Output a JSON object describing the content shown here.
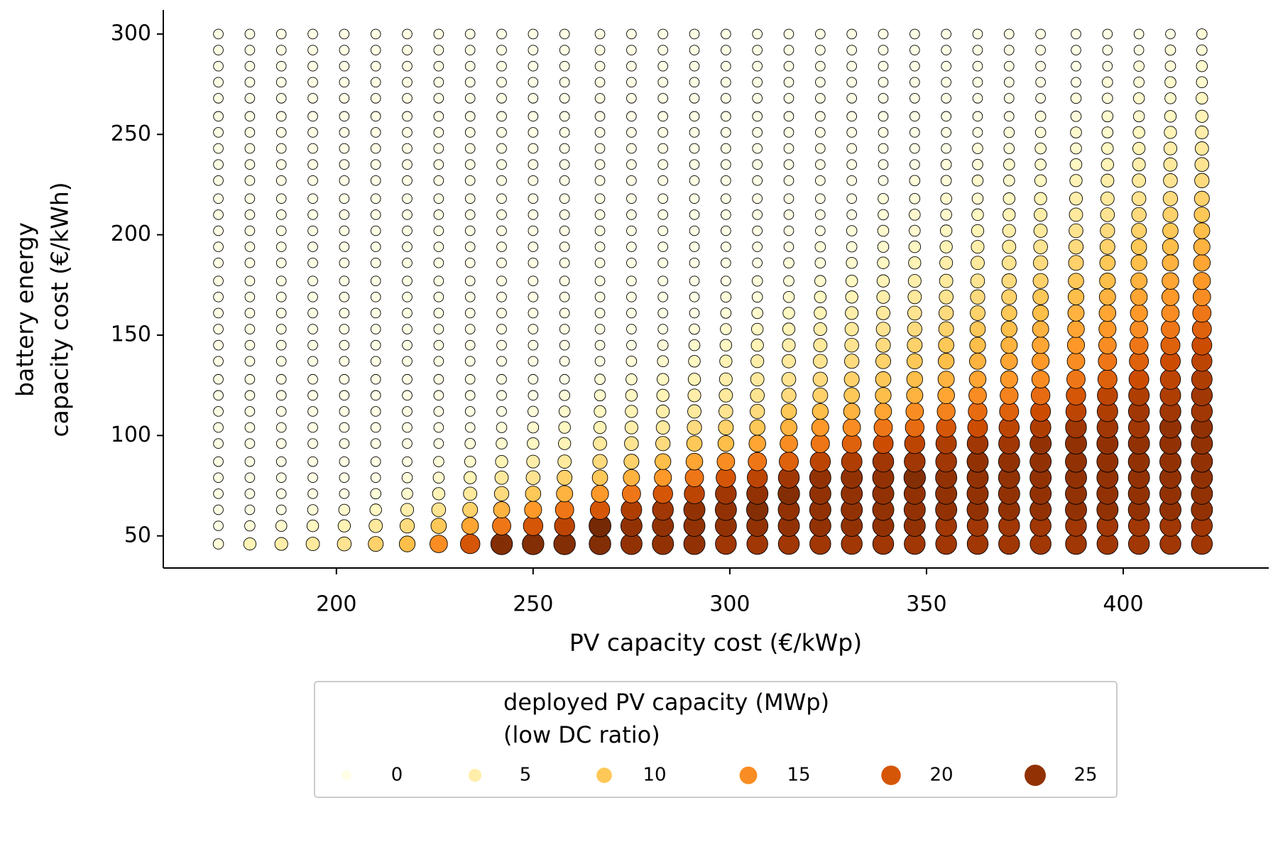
{
  "chart_data": {
    "type": "bubble",
    "x_label": "PV capacity cost (€/kWp)",
    "y_label": [
      "battery energy",
      "capacity cost (€/kWh)"
    ],
    "xlim": [
      156,
      437
    ],
    "ylim": [
      34,
      312
    ],
    "xticks": [
      200,
      250,
      300,
      350,
      400
    ],
    "yticks": [
      50,
      100,
      150,
      200,
      250,
      300
    ],
    "x": [
      170,
      178,
      186,
      194,
      202,
      210,
      218,
      226,
      234,
      242,
      250,
      258,
      267,
      275,
      283,
      291,
      299,
      307,
      315,
      323,
      331,
      339,
      347,
      355,
      363,
      371,
      379,
      388,
      396,
      404,
      412,
      420
    ],
    "y": [
      46,
      55,
      63,
      71,
      79,
      87,
      96,
      104,
      112,
      120,
      128,
      137,
      145,
      153,
      161,
      169,
      177,
      186,
      194,
      202,
      210,
      218,
      227,
      235,
      243,
      251,
      259,
      268,
      276,
      284,
      292,
      300
    ],
    "values": [
      [
        1,
        0,
        0,
        0,
        0,
        0,
        0,
        0,
        0,
        0,
        0,
        0,
        0,
        0,
        0,
        0,
        0,
        0,
        0,
        0,
        0,
        0,
        0,
        0,
        0,
        0,
        0,
        0,
        0,
        0,
        0,
        0
      ],
      [
        4,
        1,
        0,
        0,
        0,
        0,
        0,
        0,
        0,
        0,
        0,
        0,
        0,
        0,
        0,
        0,
        0,
        0,
        0,
        0,
        0,
        0,
        0,
        0,
        0,
        0,
        0,
        0,
        0,
        0,
        0,
        0
      ],
      [
        5,
        2,
        0,
        0,
        0,
        0,
        0,
        0,
        0,
        0,
        0,
        0,
        0,
        0,
        0,
        0,
        0,
        0,
        0,
        0,
        0,
        0,
        0,
        0,
        0,
        0,
        0,
        0,
        0,
        0,
        0,
        0
      ],
      [
        6,
        3,
        1,
        0,
        0,
        0,
        0,
        0,
        0,
        0,
        0,
        0,
        0,
        0,
        0,
        0,
        0,
        0,
        0,
        0,
        0,
        0,
        0,
        0,
        0,
        0,
        0,
        0,
        0,
        0,
        0,
        0
      ],
      [
        7,
        4,
        2,
        0,
        0,
        0,
        0,
        0,
        0,
        0,
        0,
        0,
        0,
        0,
        0,
        0,
        0,
        0,
        0,
        0,
        0,
        0,
        0,
        0,
        0,
        0,
        0,
        0,
        0,
        0,
        0,
        0
      ],
      [
        9,
        6,
        3,
        1,
        0,
        0,
        0,
        0,
        0,
        0,
        0,
        0,
        0,
        0,
        0,
        0,
        0,
        0,
        0,
        0,
        0,
        0,
        0,
        0,
        0,
        0,
        0,
        0,
        0,
        0,
        0,
        0
      ],
      [
        11,
        8,
        5,
        2,
        1,
        0,
        0,
        0,
        0,
        0,
        0,
        0,
        0,
        0,
        0,
        0,
        0,
        0,
        0,
        0,
        0,
        0,
        0,
        0,
        0,
        0,
        0,
        0,
        0,
        0,
        0,
        0
      ],
      [
        15,
        10,
        7,
        4,
        2,
        1,
        0,
        0,
        0,
        0,
        0,
        0,
        0,
        0,
        0,
        0,
        0,
        0,
        0,
        0,
        0,
        0,
        0,
        0,
        0,
        0,
        0,
        0,
        0,
        0,
        0,
        0
      ],
      [
        20,
        13,
        9,
        6,
        4,
        2,
        1,
        0,
        0,
        0,
        0,
        0,
        0,
        0,
        0,
        0,
        0,
        0,
        0,
        0,
        0,
        0,
        0,
        0,
        0,
        0,
        0,
        0,
        0,
        0,
        0,
        0
      ],
      [
        26,
        17,
        12,
        8,
        6,
        4,
        2,
        1,
        0,
        0,
        0,
        0,
        0,
        0,
        0,
        0,
        0,
        0,
        0,
        0,
        0,
        0,
        0,
        0,
        0,
        0,
        0,
        0,
        0,
        0,
        0,
        0
      ],
      [
        26,
        20,
        14,
        10,
        7,
        5,
        3,
        2,
        1,
        0,
        0,
        0,
        0,
        0,
        0,
        0,
        0,
        0,
        0,
        0,
        0,
        0,
        0,
        0,
        0,
        0,
        0,
        0,
        0,
        0,
        0,
        0
      ],
      [
        26,
        22,
        17,
        12,
        9,
        6,
        4,
        3,
        2,
        1,
        0,
        0,
        0,
        0,
        0,
        0,
        0,
        0,
        0,
        0,
        0,
        0,
        0,
        0,
        0,
        0,
        0,
        0,
        0,
        0,
        0,
        0
      ],
      [
        26,
        27,
        20,
        14,
        10,
        8,
        6,
        4,
        3,
        2,
        1,
        0,
        0,
        0,
        0,
        0,
        0,
        0,
        0,
        0,
        0,
        0,
        0,
        0,
        0,
        0,
        0,
        0,
        0,
        0,
        0,
        0
      ],
      [
        25,
        25,
        23,
        17,
        12,
        9,
        7,
        5,
        4,
        3,
        2,
        1,
        0,
        0,
        0,
        0,
        0,
        0,
        0,
        0,
        0,
        0,
        0,
        0,
        0,
        0,
        0,
        0,
        0,
        0,
        0,
        0
      ],
      [
        25,
        25,
        24,
        20,
        14,
        11,
        8,
        6,
        5,
        4,
        3,
        2,
        1,
        0,
        0,
        0,
        0,
        0,
        0,
        0,
        0,
        0,
        0,
        0,
        0,
        0,
        0,
        0,
        0,
        0,
        0,
        0
      ],
      [
        25,
        25,
        25,
        22,
        17,
        13,
        10,
        8,
        6,
        5,
        4,
        3,
        2,
        1,
        0,
        0,
        0,
        0,
        0,
        0,
        0,
        0,
        0,
        0,
        0,
        0,
        0,
        0,
        0,
        0,
        0,
        0
      ],
      [
        24,
        25,
        25,
        24,
        20,
        15,
        11,
        9,
        7,
        6,
        5,
        4,
        3,
        2,
        1,
        1,
        0,
        0,
        0,
        0,
        0,
        0,
        0,
        0,
        0,
        0,
        0,
        0,
        0,
        0,
        0,
        0
      ],
      [
        24,
        25,
        26,
        25,
        22,
        17,
        13,
        10,
        8,
        7,
        6,
        5,
        4,
        3,
        2,
        1,
        1,
        0,
        0,
        0,
        0,
        0,
        0,
        0,
        0,
        0,
        0,
        0,
        0,
        0,
        0,
        0
      ],
      [
        24,
        25,
        25,
        26,
        24,
        19,
        15,
        12,
        10,
        8,
        7,
        6,
        5,
        4,
        3,
        2,
        1,
        1,
        0,
        0,
        0,
        0,
        0,
        0,
        0,
        0,
        0,
        0,
        0,
        0,
        0,
        0
      ],
      [
        24,
        25,
        25,
        25,
        25,
        22,
        17,
        14,
        11,
        9,
        8,
        7,
        6,
        5,
        4,
        3,
        2,
        1,
        1,
        0,
        0,
        0,
        0,
        0,
        0,
        0,
        0,
        0,
        0,
        0,
        0,
        0
      ],
      [
        24,
        25,
        25,
        25,
        25,
        23,
        19,
        15,
        12,
        10,
        9,
        8,
        7,
        6,
        5,
        4,
        3,
        2,
        1,
        1,
        0,
        0,
        0,
        0,
        0,
        0,
        0,
        0,
        0,
        0,
        0,
        0
      ],
      [
        24,
        25,
        25,
        25,
        25,
        24,
        21,
        17,
        13,
        11,
        10,
        9,
        8,
        7,
        6,
        5,
        4,
        3,
        2,
        2,
        1,
        1,
        0,
        0,
        0,
        0,
        0,
        0,
        0,
        0,
        0,
        0
      ],
      [
        24,
        25,
        25,
        25,
        26,
        24,
        22,
        18,
        15,
        12,
        11,
        10,
        9,
        8,
        7,
        6,
        5,
        4,
        3,
        2,
        2,
        1,
        1,
        0,
        0,
        0,
        0,
        0,
        0,
        0,
        0,
        0
      ],
      [
        24,
        24,
        25,
        25,
        25,
        24,
        23,
        20,
        16,
        13,
        12,
        11,
        10,
        9,
        8,
        7,
        6,
        5,
        4,
        3,
        2,
        2,
        1,
        1,
        0,
        0,
        0,
        0,
        0,
        0,
        0,
        0
      ],
      [
        24,
        24,
        25,
        25,
        25,
        25,
        24,
        21,
        18,
        15,
        13,
        12,
        11,
        10,
        9,
        8,
        7,
        6,
        5,
        4,
        3,
        2,
        2,
        1,
        1,
        0,
        0,
        0,
        0,
        0,
        0,
        0
      ],
      [
        24,
        24,
        25,
        25,
        25,
        25,
        24,
        22,
        19,
        16,
        14,
        13,
        12,
        11,
        10,
        9,
        8,
        7,
        6,
        5,
        4,
        3,
        2,
        2,
        1,
        1,
        0,
        0,
        0,
        0,
        0,
        0
      ],
      [
        24,
        24,
        25,
        25,
        25,
        25,
        25,
        23,
        21,
        18,
        15,
        14,
        13,
        12,
        11,
        10,
        9,
        8,
        7,
        6,
        5,
        4,
        3,
        2,
        2,
        1,
        1,
        0,
        0,
        0,
        0,
        0
      ],
      [
        24,
        24,
        25,
        25,
        25,
        25,
        25,
        24,
        22,
        20,
        17,
        15,
        14,
        13,
        12,
        11,
        10,
        9,
        8,
        7,
        6,
        5,
        4,
        3,
        2,
        2,
        1,
        1,
        0,
        0,
        0,
        0
      ],
      [
        24,
        24,
        25,
        25,
        25,
        25,
        25,
        24,
        23,
        22,
        19,
        17,
        15,
        14,
        13,
        12,
        11,
        10,
        9,
        8,
        7,
        6,
        5,
        4,
        3,
        2,
        2,
        1,
        1,
        0,
        0,
        0
      ],
      [
        24,
        24,
        25,
        25,
        25,
        25,
        25,
        24,
        24,
        23,
        21,
        19,
        17,
        15,
        14,
        13,
        12,
        11,
        10,
        9,
        8,
        7,
        6,
        5,
        4,
        3,
        2,
        2,
        1,
        1,
        0,
        0
      ],
      [
        24,
        24,
        25,
        25,
        25,
        25,
        25,
        25,
        24,
        23,
        22,
        21,
        19,
        17,
        15,
        14,
        13,
        12,
        11,
        10,
        9,
        8,
        7,
        6,
        5,
        4,
        3,
        2,
        2,
        1,
        1,
        0
      ],
      [
        24,
        24,
        25,
        25,
        25,
        25,
        25,
        25,
        24,
        24,
        23,
        22,
        21,
        19,
        17,
        15,
        14,
        13,
        12,
        11,
        10,
        9,
        8,
        7,
        6,
        5,
        4,
        3,
        2,
        2,
        1,
        1
      ]
    ],
    "colormap": [
      "#ffffe5",
      "#fff7bc",
      "#fee391",
      "#fec44f",
      "#fe9929",
      "#ec7014",
      "#cc4c02",
      "#993404",
      "#662506"
    ],
    "color_range": [
      0,
      28
    ],
    "legend": {
      "title": [
        "deployed PV capacity (MWp)",
        "(low DC ratio)"
      ],
      "values": [
        0,
        5,
        10,
        15,
        20,
        25
      ]
    }
  }
}
